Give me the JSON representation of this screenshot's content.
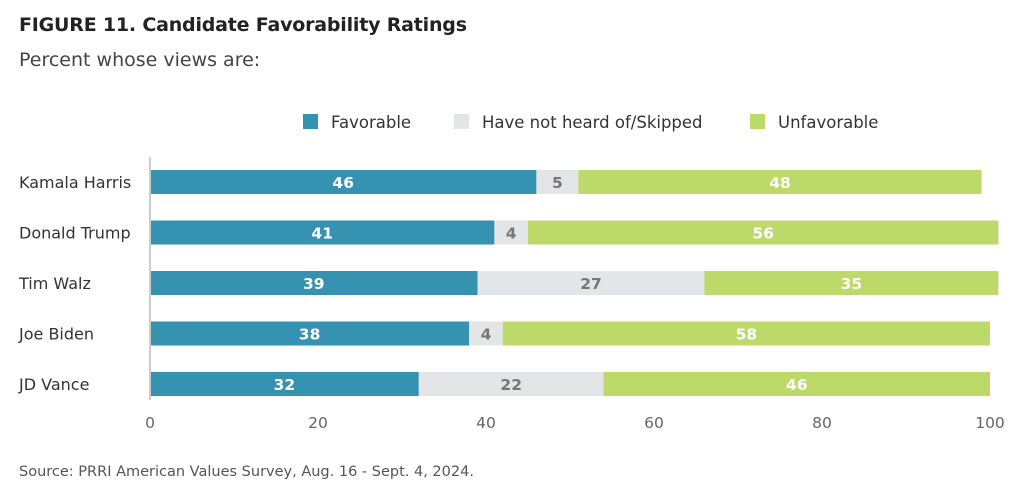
{
  "title": "FIGURE 11.  Candidate Favorability Ratings",
  "subtitle": "Percent whose views are:",
  "source": "Source: PRRI American Values Survey, Aug. 16 - Sept. 4, 2024.",
  "colors": {
    "favorable": "#3592b0",
    "not_heard": "#e4e5e6",
    "unfavorable": "#bcd96a",
    "axis": "#cccccc",
    "tick_text": "#666666",
    "label_text": "#333333"
  },
  "chart_data": {
    "type": "bar",
    "orientation": "horizontal",
    "stacked": true,
    "title": "FIGURE 11.  Candidate Favorability Ratings",
    "subtitle": "Percent whose views are:",
    "categories": [
      "Kamala Harris",
      "Donald Trump",
      "Tim Walz",
      "Joe Biden",
      "JD Vance"
    ],
    "series": [
      {
        "name": "Favorable",
        "values": [
          46,
          41,
          39,
          38,
          32
        ]
      },
      {
        "name": "Have not heard of/Skipped",
        "values": [
          5,
          4,
          27,
          4,
          22
        ]
      },
      {
        "name": "Unfavorable",
        "values": [
          48,
          56,
          35,
          58,
          46
        ]
      }
    ],
    "xlim": [
      0,
      100
    ],
    "xticks": [
      0,
      20,
      40,
      60,
      80,
      100
    ],
    "xlabel": "",
    "ylabel": "",
    "grid": false,
    "legend_position": "top",
    "data_labels": true
  }
}
